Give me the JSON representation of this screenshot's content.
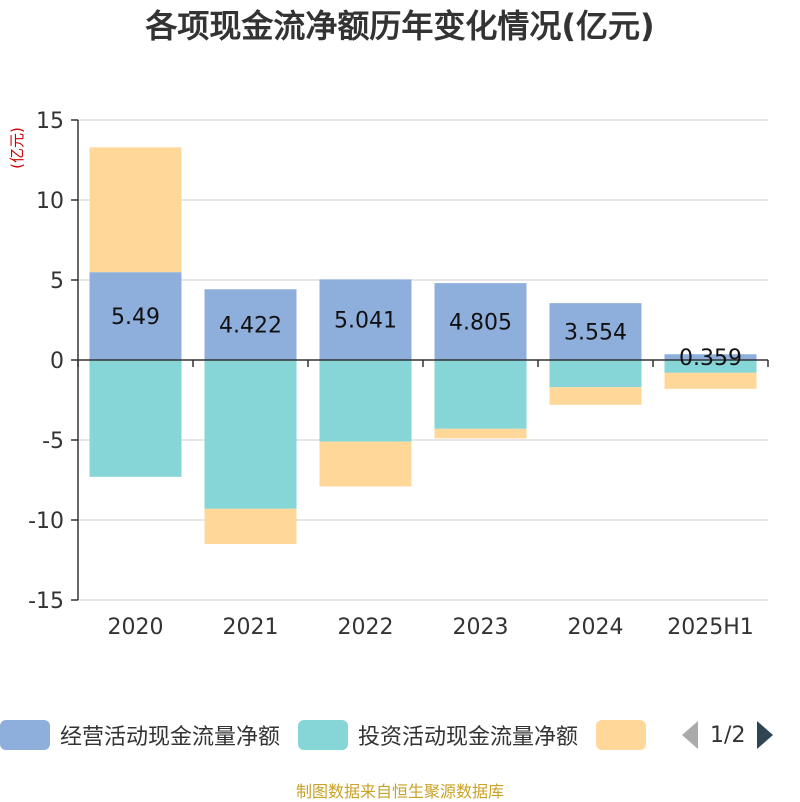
{
  "chart_data": {
    "type": "bar",
    "stacked": true,
    "title": "各项现金流净额历年变化情况(亿元)",
    "ylabel": "(亿元)",
    "categories": [
      "2020",
      "2021",
      "2022",
      "2023",
      "2024",
      "2025H1"
    ],
    "ylim": [
      -15,
      15
    ],
    "yticks": [
      15,
      10,
      5,
      0,
      -5,
      -10,
      -15
    ],
    "ytick_labels": [
      "15",
      "10",
      "5",
      "0",
      "-5",
      "-10",
      "-15"
    ],
    "grid": true,
    "legend_position": "bottom",
    "series": [
      {
        "name": "经营活动现金流量净额",
        "color": "#8eaedc",
        "values": [
          5.49,
          4.422,
          5.041,
          4.805,
          3.554,
          0.359
        ],
        "labels": [
          "5.49",
          "4.422",
          "5.041",
          "4.805",
          "3.554",
          "0.359"
        ]
      },
      {
        "name": "投资活动现金流量净额",
        "color": "#86d5d7",
        "values": [
          -7.3,
          -9.3,
          -5.1,
          -4.3,
          -1.7,
          -0.8
        ]
      },
      {
        "name": "",
        "color": "#ffd899",
        "values": [
          7.8,
          -2.2,
          -2.8,
          -0.6,
          -1.1,
          -1.0
        ]
      }
    ]
  },
  "legend": {
    "items": [
      {
        "label": "经营活动现金流量净额",
        "color": "#8eaedc"
      },
      {
        "label": "投资活动现金流量净额",
        "color": "#86d5d7"
      },
      {
        "label": "",
        "color": "#ffd899"
      }
    ],
    "page_text": "1/2"
  },
  "footer": {
    "source": "制图数据来自恒生聚源数据库"
  }
}
